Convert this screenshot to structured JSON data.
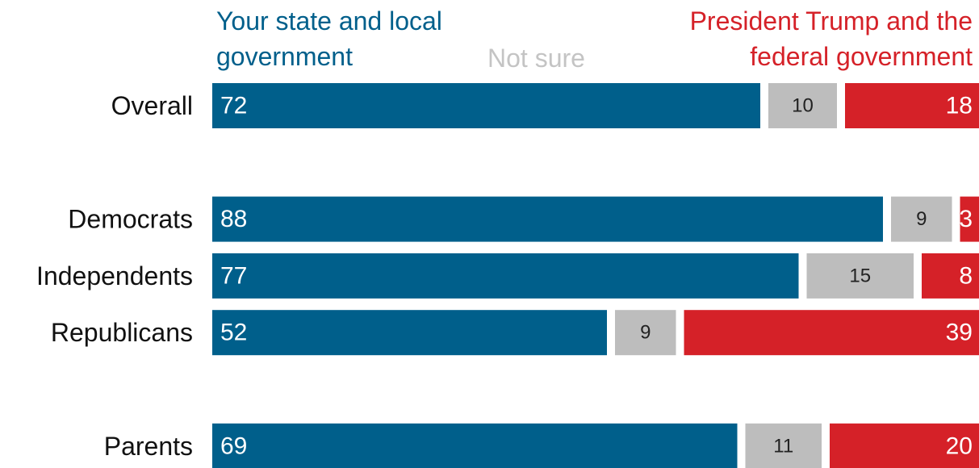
{
  "chart_data": {
    "type": "stacked_bar_horizontal",
    "categories": [
      "Overall",
      null,
      "Democrats",
      "Independents",
      "Republicans",
      null,
      "Parents"
    ],
    "series": [
      {
        "name": "Your state and local government",
        "color": "#005f8b",
        "values": [
          72,
          null,
          88,
          77,
          52,
          null,
          69
        ]
      },
      {
        "name": "Not sure",
        "color": "#bdbdbd",
        "values": [
          10,
          null,
          9,
          15,
          9,
          null,
          11
        ]
      },
      {
        "name": "President Trump and the federal government",
        "color": "#d52128",
        "values": [
          18,
          null,
          3,
          8,
          39,
          null,
          20
        ]
      }
    ],
    "xlim": [
      0,
      100
    ]
  }
}
